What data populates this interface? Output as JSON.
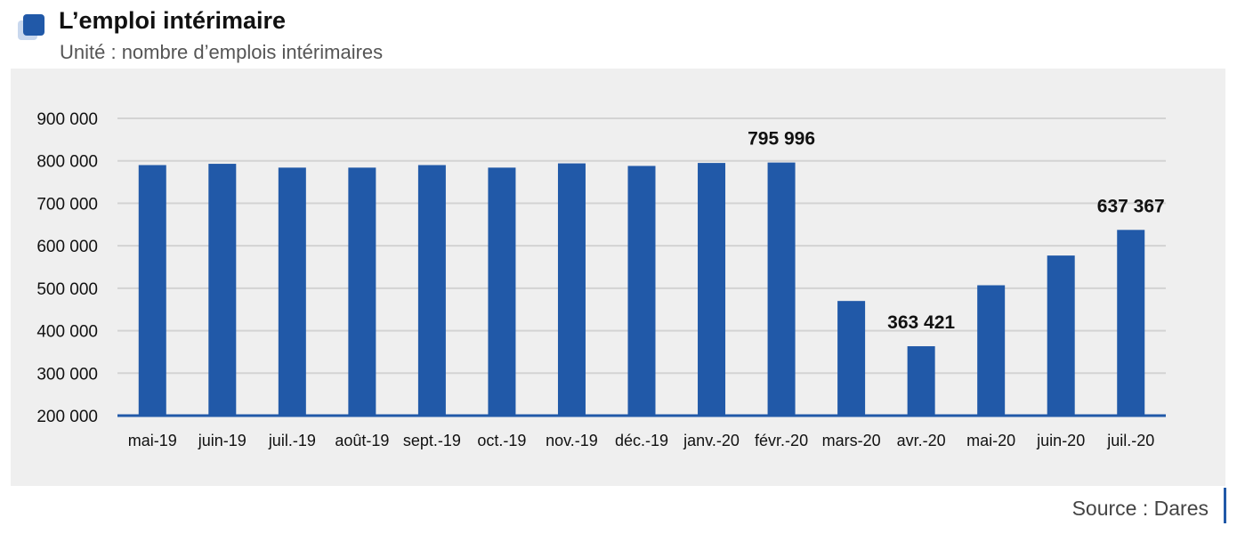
{
  "header": {
    "title": "L’emploi intérimaire",
    "subtitle": "Unité : nombre d’emplois intérimaires"
  },
  "footer": {
    "source": "Source : Dares"
  },
  "colors": {
    "bar": "#2159a8",
    "axis": "#2159a8",
    "grid": "#d3d3d3",
    "panel": "#efefef"
  },
  "chart_data": {
    "type": "bar",
    "title": "L’emploi intérimaire",
    "subtitle": "Unité : nombre d’emplois intérimaires",
    "xlabel": "",
    "ylabel": "",
    "categories": [
      "mai-19",
      "juin-19",
      "juil.-19",
      "août-19",
      "sept.-19",
      "oct.-19",
      "nov.-19",
      "déc.-19",
      "janv.-20",
      "févr.-20",
      "mars-20",
      "avr.-20",
      "mai-20",
      "juin-20",
      "juil.-20"
    ],
    "values": [
      790000,
      793000,
      784000,
      784000,
      790000,
      784000,
      794000,
      788000,
      795000,
      795996,
      470000,
      363421,
      507000,
      577000,
      637367
    ],
    "ylim": [
      200000,
      900000
    ],
    "yticks": [
      200000,
      300000,
      400000,
      500000,
      600000,
      700000,
      800000,
      900000
    ],
    "ytick_labels": [
      "200 000",
      "300 000",
      "400 000",
      "500 000",
      "600 000",
      "700 000",
      "800 000",
      "900 000"
    ],
    "data_labels": [
      {
        "category": "févr.-20",
        "text": "795 996"
      },
      {
        "category": "avr.-20",
        "text": "363 421"
      },
      {
        "category": "juil.-20",
        "text": "637 367"
      }
    ],
    "grid": true,
    "legend": "none"
  }
}
